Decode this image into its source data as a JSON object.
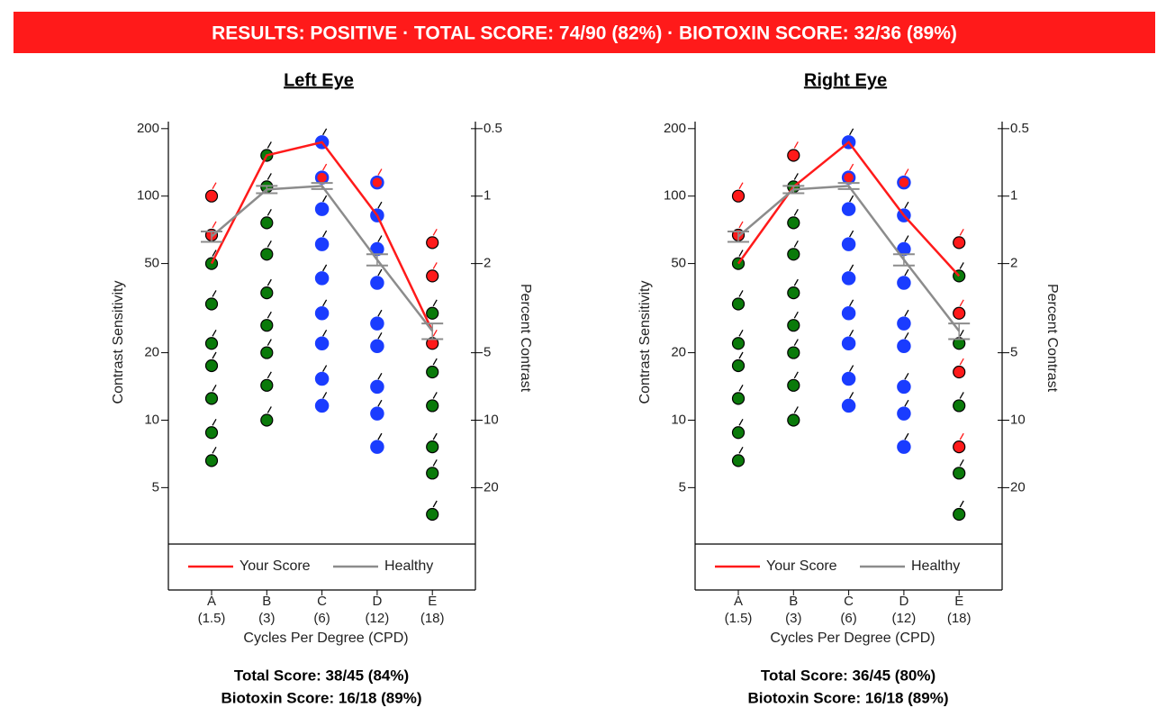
{
  "header": {
    "text": "RESULTS:  POSITIVE  ·  TOTAL SCORE:  74/90 (82%)  ·  BIOTOXIN SCORE:  32/36 (89%)",
    "color": "#ff1a1a"
  },
  "chart_data": [
    {
      "type": "line",
      "title": "Left Eye",
      "xlabel": "Cycles Per Degree (CPD)",
      "ylabel": "Contrast Sensitivity",
      "y2label": "Percent Contrast",
      "categories": [
        "A",
        "B",
        "C",
        "D",
        "E"
      ],
      "category_notes": [
        "(1.5)",
        "(3)",
        "(6)",
        "(12)",
        "(18)"
      ],
      "log_scale": true,
      "ylim": [
        2.8,
        215
      ],
      "yticks": [
        5,
        10,
        20,
        50,
        100,
        200
      ],
      "y2lim": [
        35.7,
        0.465
      ],
      "y2ticks": [
        0.5,
        1,
        2,
        5,
        10,
        20
      ],
      "legend": "bottom",
      "series": [
        {
          "name": "Your Score",
          "color": "#ff1a1a",
          "values": [
            50,
            152,
            174,
            82,
            25
          ]
        },
        {
          "name": "Healthy",
          "color": "#8c8c8c",
          "values": [
            66,
            107,
            111,
            52,
            25
          ],
          "errors": [
            3.5,
            4,
            3.5,
            3,
            2
          ]
        }
      ],
      "levels": [
        {
          "edge_color": "#000000",
          "values": [
            100,
            67,
            50,
            33,
            22,
            17.5,
            12.5,
            8.8,
            6.6
          ],
          "colors": [
            "#ff1a1a",
            "#ff1a1a",
            "#0a7a0a",
            "#0a7a0a",
            "#0a7a0a",
            "#0a7a0a",
            "#0a7a0a",
            "#0a7a0a",
            "#0a7a0a"
          ]
        },
        {
          "edge_color": "#000000",
          "values": [
            152,
            110,
            76,
            55,
            37,
            26.5,
            20,
            14.3,
            10
          ],
          "colors": [
            "#0a7a0a",
            "#0a7a0a",
            "#0a7a0a",
            "#0a7a0a",
            "#0a7a0a",
            "#0a7a0a",
            "#0a7a0a",
            "#0a7a0a",
            "#0a7a0a"
          ]
        },
        {
          "edge_color": "#1a3cff",
          "values": [
            174,
            121,
            87.5,
            61,
            43,
            30,
            22,
            15.3,
            11.6
          ],
          "colors": [
            "#1a3cff",
            "#ff1a1a",
            "#1a3cff",
            "#1a3cff",
            "#1a3cff",
            "#1a3cff",
            "#1a3cff",
            "#1a3cff",
            "#1a3cff"
          ]
        },
        {
          "edge_color": "#1a3cff",
          "values": [
            115,
            82,
            58,
            41,
            27,
            21.4,
            14.1,
            10.7,
            7.6
          ],
          "colors": [
            "#ff1a1a",
            "#1a3cff",
            "#1a3cff",
            "#1a3cff",
            "#1a3cff",
            "#1a3cff",
            "#1a3cff",
            "#1a3cff",
            "#1a3cff"
          ]
        },
        {
          "edge_color": "#000000",
          "values": [
            62,
            44,
            30,
            22,
            16.4,
            11.6,
            7.6,
            5.8,
            3.8
          ],
          "colors": [
            "#ff1a1a",
            "#ff1a1a",
            "#0a7a0a",
            "#ff1a1a",
            "#0a7a0a",
            "#0a7a0a",
            "#0a7a0a",
            "#0a7a0a",
            "#0a7a0a"
          ]
        }
      ],
      "total_score": "Total Score: 38/45 (84%)",
      "biotoxin_score": "Biotoxin Score: 16/18 (89%)"
    },
    {
      "type": "line",
      "title": "Right Eye",
      "xlabel": "Cycles Per Degree (CPD)",
      "ylabel": "Contrast Sensitivity",
      "y2label": "Percent Contrast",
      "categories": [
        "A",
        "B",
        "C",
        "D",
        "E"
      ],
      "category_notes": [
        "(1.5)",
        "(3)",
        "(6)",
        "(12)",
        "(18)"
      ],
      "log_scale": true,
      "ylim": [
        2.8,
        215
      ],
      "yticks": [
        5,
        10,
        20,
        50,
        100,
        200
      ],
      "y2lim": [
        35.7,
        0.465
      ],
      "y2ticks": [
        0.5,
        1,
        2,
        5,
        10,
        20
      ],
      "legend": "bottom",
      "series": [
        {
          "name": "Your Score",
          "color": "#ff1a1a",
          "values": [
            50,
            110,
            174,
            82,
            44
          ]
        },
        {
          "name": "Healthy",
          "color": "#8c8c8c",
          "values": [
            66,
            107,
            111,
            52,
            25
          ],
          "errors": [
            3.5,
            4,
            3.5,
            3,
            2
          ]
        }
      ],
      "levels": [
        {
          "edge_color": "#000000",
          "values": [
            100,
            67,
            50,
            33,
            22,
            17.5,
            12.5,
            8.8,
            6.6
          ],
          "colors": [
            "#ff1a1a",
            "#ff1a1a",
            "#0a7a0a",
            "#0a7a0a",
            "#0a7a0a",
            "#0a7a0a",
            "#0a7a0a",
            "#0a7a0a",
            "#0a7a0a"
          ]
        },
        {
          "edge_color": "#000000",
          "values": [
            152,
            110,
            76,
            55,
            37,
            26.5,
            20,
            14.3,
            10
          ],
          "colors": [
            "#ff1a1a",
            "#0a7a0a",
            "#0a7a0a",
            "#0a7a0a",
            "#0a7a0a",
            "#0a7a0a",
            "#0a7a0a",
            "#0a7a0a",
            "#0a7a0a"
          ]
        },
        {
          "edge_color": "#1a3cff",
          "values": [
            174,
            121,
            87.5,
            61,
            43,
            30,
            22,
            15.3,
            11.6
          ],
          "colors": [
            "#1a3cff",
            "#ff1a1a",
            "#1a3cff",
            "#1a3cff",
            "#1a3cff",
            "#1a3cff",
            "#1a3cff",
            "#1a3cff",
            "#1a3cff"
          ]
        },
        {
          "edge_color": "#1a3cff",
          "values": [
            115,
            82,
            58,
            41,
            27,
            21.4,
            14.1,
            10.7,
            7.6
          ],
          "colors": [
            "#ff1a1a",
            "#1a3cff",
            "#1a3cff",
            "#1a3cff",
            "#1a3cff",
            "#1a3cff",
            "#1a3cff",
            "#1a3cff",
            "#1a3cff"
          ]
        },
        {
          "edge_color": "#000000",
          "values": [
            62,
            44,
            30,
            22,
            16.4,
            11.6,
            7.6,
            5.8,
            3.8
          ],
          "colors": [
            "#ff1a1a",
            "#0a7a0a",
            "#ff1a1a",
            "#0a7a0a",
            "#ff1a1a",
            "#0a7a0a",
            "#ff1a1a",
            "#0a7a0a",
            "#0a7a0a"
          ]
        }
      ],
      "total_score": "Total Score: 36/45 (80%)",
      "biotoxin_score": "Biotoxin Score: 16/18 (89%)"
    }
  ]
}
